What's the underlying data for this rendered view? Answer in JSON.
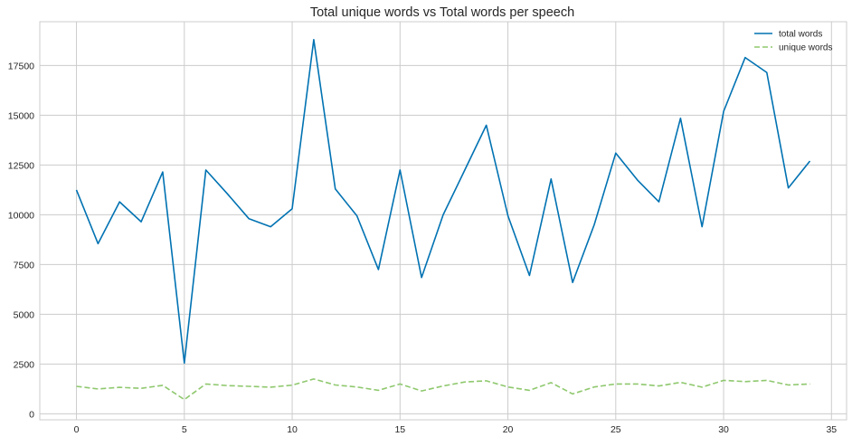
{
  "chart_data": {
    "type": "line",
    "title": "Total unique words vs Total words per speech",
    "xlabel": "",
    "ylabel": "",
    "x": [
      0,
      1,
      2,
      3,
      4,
      5,
      6,
      7,
      8,
      9,
      10,
      11,
      12,
      13,
      14,
      15,
      16,
      17,
      18,
      19,
      20,
      21,
      22,
      23,
      24,
      25,
      26,
      27,
      28,
      29,
      30,
      31,
      32,
      33,
      34
    ],
    "xlim": [
      -1.7,
      35.7
    ],
    "ylim": [
      -300,
      19700
    ],
    "xticks": [
      0,
      5,
      10,
      15,
      20,
      25,
      30,
      35
    ],
    "yticks": [
      0,
      2500,
      5000,
      7500,
      10000,
      12500,
      15000,
      17500
    ],
    "grid": true,
    "legend_position": "top-right",
    "series": [
      {
        "name": "total words",
        "color": "#0072b2",
        "style": "solid",
        "values": [
          11250,
          8550,
          10650,
          9650,
          12150,
          2550,
          12250,
          11050,
          9800,
          9400,
          10300,
          18800,
          11300,
          9950,
          7250,
          12250,
          6850,
          10000,
          12250,
          14500,
          9950,
          6950,
          11800,
          6600,
          9500,
          13100,
          11750,
          10650,
          14850,
          9400,
          15200,
          17900,
          17150,
          11350,
          12700
        ]
      },
      {
        "name": "unique words",
        "color": "#8fc86e",
        "style": "dashed",
        "values": [
          1380,
          1250,
          1330,
          1280,
          1430,
          720,
          1500,
          1420,
          1380,
          1340,
          1440,
          1750,
          1450,
          1350,
          1180,
          1500,
          1150,
          1400,
          1600,
          1660,
          1350,
          1180,
          1570,
          1000,
          1350,
          1500,
          1500,
          1400,
          1580,
          1340,
          1680,
          1620,
          1680,
          1450,
          1500
        ]
      }
    ]
  }
}
